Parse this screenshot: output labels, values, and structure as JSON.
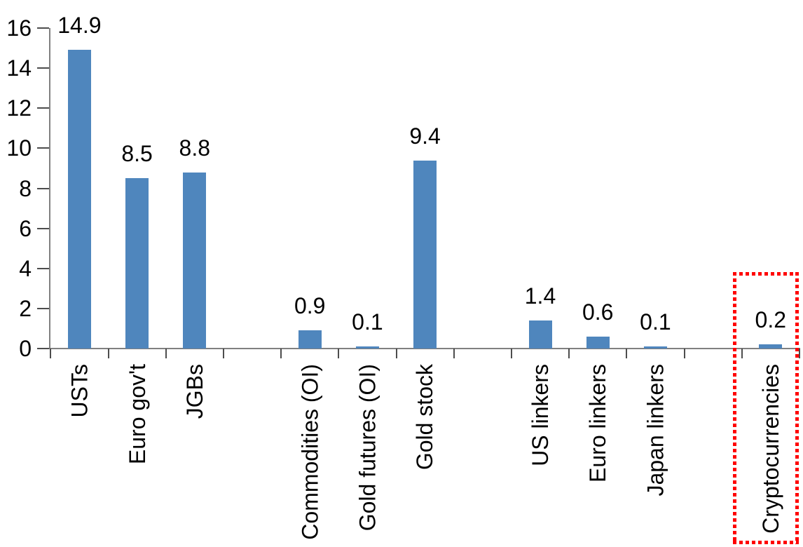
{
  "chart_data": {
    "type": "bar",
    "title": "",
    "xlabel": "",
    "ylabel": "",
    "categories": [
      "USTs",
      "Euro gov't",
      "JGBs",
      "Commodities (OI)",
      "Gold futures (OI)",
      "Gold stock",
      "US linkers",
      "Euro linkers",
      "Japan linkers",
      "Cryptocurrencies"
    ],
    "values": [
      14.9,
      8.5,
      8.8,
      0.9,
      0.1,
      9.4,
      1.4,
      0.6,
      0.1,
      0.2
    ],
    "data_labels": [
      "14.9",
      "8.5",
      "8.8",
      "0.9",
      "0.1",
      "9.4",
      "1.4",
      "0.6",
      "0.1",
      "0.2"
    ],
    "slots": [
      0,
      1,
      2,
      4,
      5,
      6,
      8,
      9,
      10,
      12
    ],
    "num_slots": 13,
    "ylim": [
      0,
      16
    ],
    "yticks": [
      0,
      2,
      4,
      6,
      8,
      10,
      12,
      14,
      16
    ],
    "grid": false,
    "legend": false,
    "bar_color": "#4F86BD",
    "axis_color": "#808080",
    "tick_color": "#4d4d4d",
    "text_color": "#000000",
    "highlight": {
      "category": "Cryptocurrencies",
      "slot": 12,
      "style": "red-dotted-box",
      "color": "#FF0000"
    }
  }
}
